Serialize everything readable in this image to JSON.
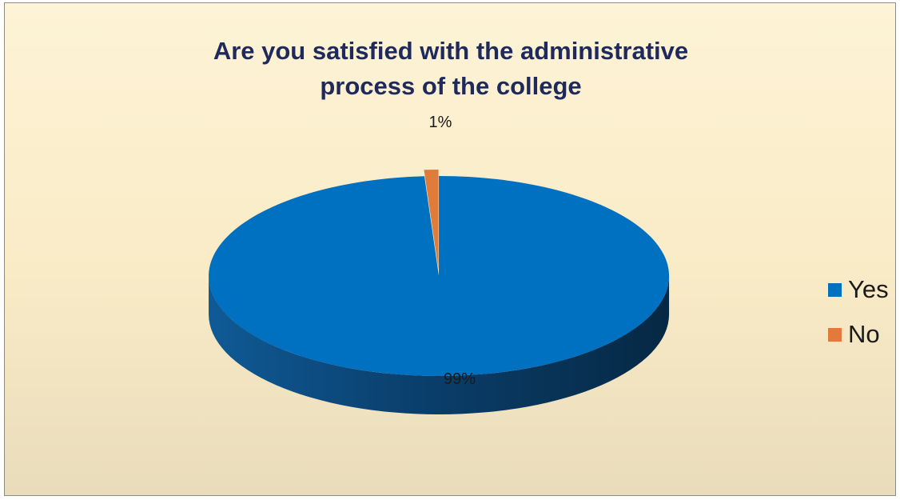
{
  "chart_data": {
    "type": "pie",
    "title": "Are you satisfied with the administrative process of the college",
    "categories": [
      "Yes",
      "No"
    ],
    "values": [
      99,
      1
    ],
    "data_labels": [
      "99%",
      "1%"
    ],
    "colors": [
      "#0070c0",
      "#e07b39"
    ],
    "legend": "right",
    "style": "3d-exploded"
  }
}
